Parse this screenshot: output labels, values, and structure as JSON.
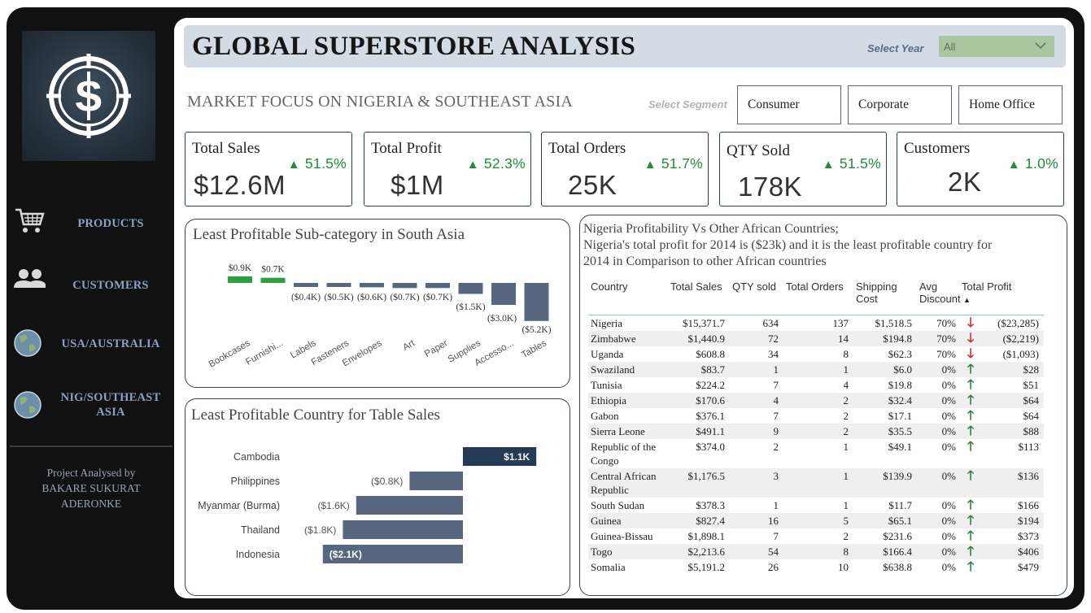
{
  "header": {
    "title": "GLOBAL SUPERSTORE ANALYSIS",
    "year_label": "Select Year",
    "year_value": "All",
    "subtitle": "MARKET FOCUS ON NIGERIA & SOUTHEAST ASIA",
    "segment_label": "Select Segment",
    "segments": [
      "Consumer",
      "Corporate",
      "Home Office"
    ]
  },
  "sidebar": {
    "items": [
      {
        "label": "PRODUCTS",
        "icon": "cart-icon"
      },
      {
        "label": "CUSTOMERS",
        "icon": "users-icon"
      },
      {
        "label": "USA/AUSTRALIA",
        "icon": "globe-icon"
      },
      {
        "label": "NIG/SOUTHEAST ASIA",
        "icon": "globe-icon"
      }
    ],
    "credit_line1": "Project Analysed by",
    "credit_line2": "BAKARE SUKURAT",
    "credit_line3": "ADERONKE",
    "logo_icon": "dollar-target-icon"
  },
  "kpis": [
    {
      "label": "Total Sales",
      "change": "51.5%",
      "value": "$12.6M"
    },
    {
      "label": "Total Profit",
      "change": "52.3%",
      "value": "$1M"
    },
    {
      "label": "Total Orders",
      "change": "51.7%",
      "value": "25K"
    },
    {
      "label": "QTY Sold",
      "change": "51.5%",
      "value": "178K"
    },
    {
      "label": "Customers",
      "change": "1.0%",
      "value": "2K"
    }
  ],
  "colors": {
    "positive": "#1e8d35",
    "negative": "#d02a25",
    "bar": "#56677f",
    "bar_dark": "#243b55",
    "accent_green": "#2e9e3f"
  },
  "chart_data": [
    {
      "type": "bar",
      "title": "Least Profitable Sub-category in South Asia",
      "categories": [
        "Bookcases",
        "Furnishi...",
        "Labels",
        "Fasteners",
        "Envelopes",
        "Art",
        "Paper",
        "Supplies",
        "Accesso...",
        "Tables"
      ],
      "values": [
        0.9,
        0.7,
        -0.4,
        -0.5,
        -0.6,
        -0.7,
        -0.7,
        -1.5,
        -3.0,
        -5.2
      ],
      "labels": [
        "$0.9K",
        "$0.7K",
        "($0.4K)",
        "($0.5K)",
        "($0.6K)",
        "($0.7K)",
        "($0.7K)",
        "($1.5K)",
        "($3.0K)",
        "($5.2K)"
      ]
    },
    {
      "type": "bar",
      "orientation": "horizontal",
      "title": "Least Profitable Country for Table Sales",
      "categories": [
        "Cambodia",
        "Philippines",
        "Myanmar (Burma)",
        "Thailand",
        "Indonesia"
      ],
      "values": [
        1.1,
        -0.8,
        -1.6,
        -1.8,
        -2.1
      ],
      "labels": [
        "$1.1K",
        "($0.8K)",
        "($1.6K)",
        "($1.8K)",
        "($2.1K)"
      ]
    }
  ],
  "africa": {
    "title_line1": "Nigeria Profitability Vs Other African Countries;",
    "title_line2": "Nigeria's total profit for 2014 is ($23k) and it is the least profitable country for",
    "title_line3": "2014 in Comparison to other African countries",
    "columns": [
      "Country",
      "Total Sales",
      "QTY sold",
      "Total Orders",
      "Shipping Cost",
      "Avg Discount",
      "Total Profit"
    ],
    "rows": [
      [
        "Nigeria",
        "$15,371.7",
        "634",
        "137",
        "$1,518.5",
        "70%",
        "down",
        "($23,285)"
      ],
      [
        "Zimbabwe",
        "$1,440.9",
        "72",
        "14",
        "$194.8",
        "70%",
        "down",
        "($2,219)"
      ],
      [
        "Uganda",
        "$608.8",
        "34",
        "8",
        "$62.3",
        "70%",
        "down",
        "($1,093)"
      ],
      [
        "Swaziland",
        "$83.7",
        "1",
        "1",
        "$6.0",
        "0%",
        "up",
        "$28"
      ],
      [
        "Tunisia",
        "$224.2",
        "7",
        "4",
        "$19.8",
        "0%",
        "up",
        "$51"
      ],
      [
        "Ethiopia",
        "$170.6",
        "4",
        "2",
        "$32.4",
        "0%",
        "up",
        "$64"
      ],
      [
        "Gabon",
        "$376.1",
        "7",
        "2",
        "$17.1",
        "0%",
        "up",
        "$64"
      ],
      [
        "Sierra Leone",
        "$491.1",
        "9",
        "2",
        "$35.5",
        "0%",
        "up",
        "$88"
      ],
      [
        "Republic of the Congo",
        "$374.0",
        "2",
        "1",
        "$49.1",
        "0%",
        "up",
        "$113"
      ],
      [
        "Central African Republic",
        "$1,176.5",
        "3",
        "1",
        "$139.9",
        "0%",
        "up",
        "$136"
      ],
      [
        "South Sudan",
        "$378.3",
        "1",
        "1",
        "$11.7",
        "0%",
        "up",
        "$166"
      ],
      [
        "Guinea",
        "$827.4",
        "16",
        "5",
        "$65.1",
        "0%",
        "up",
        "$194"
      ],
      [
        "Guinea-Bissau",
        "$1,898.1",
        "7",
        "2",
        "$231.6",
        "0%",
        "up",
        "$373"
      ],
      [
        "Togo",
        "$2,213.6",
        "54",
        "8",
        "$166.4",
        "0%",
        "up",
        "$406"
      ],
      [
        "Somalia",
        "$5,191.2",
        "26",
        "10",
        "$638.8",
        "0%",
        "up",
        "$479"
      ]
    ]
  }
}
